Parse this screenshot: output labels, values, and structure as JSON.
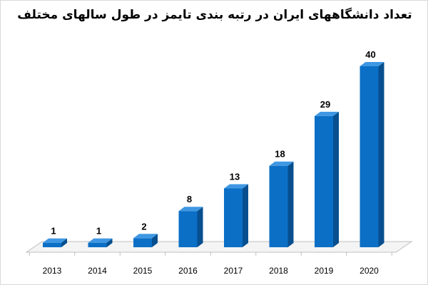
{
  "chart_data": {
    "type": "bar",
    "title": "تعداد دانشگاههای ایران در رتبه بندی تایمز در طول سالهای مختلف",
    "categories": [
      "2013",
      "2014",
      "2015",
      "2016",
      "2017",
      "2018",
      "2019",
      "2020"
    ],
    "values": [
      1,
      1,
      2,
      8,
      13,
      18,
      29,
      40
    ],
    "ylim": [
      0,
      40
    ],
    "grid": false,
    "legend": "none",
    "bar_color": "#0b6fc6",
    "bar_side_color": "#074f8f",
    "bar_top_color": "#3f97e3"
  }
}
